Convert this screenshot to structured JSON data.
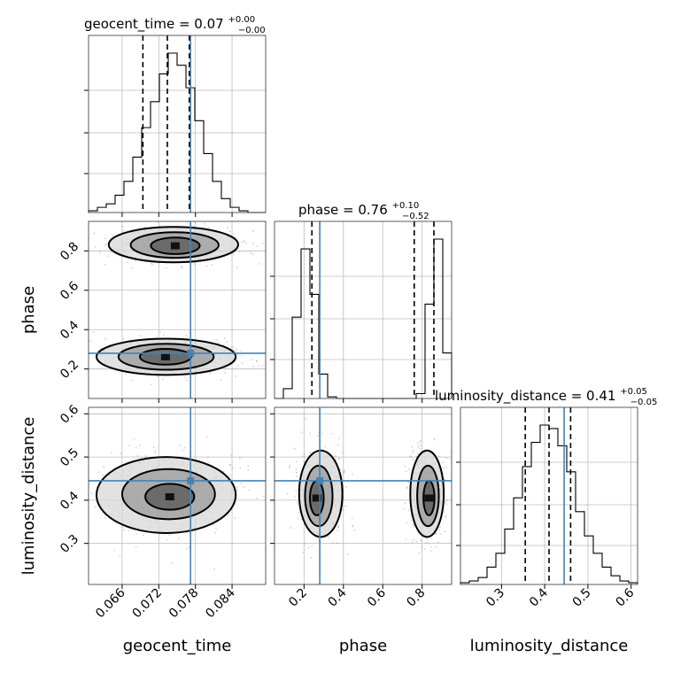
{
  "chart_data": {
    "type": "corner",
    "parameters": [
      "geocent_time",
      "phase",
      "luminosity_distance"
    ],
    "truths": {
      "geocent_time": 0.0772,
      "phase": 0.28,
      "luminosity_distance": 0.445
    },
    "titles": [
      {
        "name": "geocent_time",
        "value": "0.07",
        "plus": "+0.00",
        "minus": "−0.00"
      },
      {
        "name": "phase",
        "value": "0.76",
        "plus": "+0.10",
        "minus": "−0.52"
      },
      {
        "name": "luminosity_distance",
        "value": "0.41",
        "plus": "+0.05",
        "minus": "−0.05"
      }
    ],
    "axes": {
      "geocent_time": {
        "range": [
          0.0605,
          0.0895
        ],
        "ticks": [
          "0.066",
          "0.072",
          "0.078",
          "0.084"
        ]
      },
      "phase": {
        "range": [
          0.05,
          0.95
        ],
        "ticks": [
          "0.2",
          "0.4",
          "0.6",
          "0.8"
        ]
      },
      "luminosity_distance": {
        "range": [
          0.205,
          0.615
        ],
        "ticks": [
          "0.3",
          "0.4",
          "0.5",
          "0.6"
        ]
      }
    },
    "quantiles": {
      "geocent_time": [
        0.0694,
        0.0734,
        0.077
      ],
      "phase": [
        0.24,
        0.76,
        0.86
      ],
      "luminosity_distance": [
        0.355,
        0.41,
        0.46
      ]
    },
    "histograms": {
      "geocent_time": {
        "bins": 20,
        "range": [
          0.0605,
          0.0895
        ],
        "counts": [
          1,
          3,
          5,
          10,
          18,
          32,
          49,
          64,
          80,
          92,
          85,
          72,
          53,
          34,
          18,
          8,
          3,
          1,
          0,
          0
        ]
      },
      "phase": {
        "bins": 20,
        "range": [
          0.05,
          0.95
        ],
        "counts": [
          0,
          6,
          50,
          92,
          64,
          15,
          1,
          0,
          0,
          0,
          0,
          0,
          0,
          0,
          0,
          0,
          3,
          58,
          98,
          28
        ]
      },
      "luminosity_distance": {
        "bins": 20,
        "range": [
          0.205,
          0.615
        ],
        "counts": [
          1,
          2,
          4,
          10,
          18,
          32,
          50,
          68,
          82,
          92,
          90,
          80,
          65,
          42,
          28,
          18,
          10,
          5,
          2,
          1
        ]
      }
    },
    "contours": {
      "phase_vs_geocent_time": [
        {
          "level": 0.86,
          "blobs": [
            {
              "cx": 0.0744,
              "cy": 0.832,
              "rx": 0.0106,
              "ry": 0.09
            },
            {
              "cx": 0.0732,
              "cy": 0.262,
              "rx": 0.0114,
              "ry": 0.092
            }
          ]
        },
        {
          "level": 0.39,
          "blobs": [
            {
              "cx": 0.0746,
              "cy": 0.83,
              "rx": 0.0072,
              "ry": 0.065
            },
            {
              "cx": 0.0732,
              "cy": 0.262,
              "rx": 0.0078,
              "ry": 0.066
            }
          ]
        },
        {
          "level": 0.12,
          "blobs": [
            {
              "cx": 0.0747,
              "cy": 0.826,
              "rx": 0.004,
              "ry": 0.042
            },
            {
              "cx": 0.0731,
              "cy": 0.262,
              "rx": 0.0042,
              "ry": 0.04
            }
          ]
        }
      ],
      "luminosity_distance_vs_geocent_time": [
        {
          "level": 0.86,
          "blobs": [
            {
              "cx": 0.0732,
              "cy": 0.412,
              "rx": 0.0114,
              "ry": 0.088
            }
          ]
        },
        {
          "level": 0.39,
          "blobs": [
            {
              "cx": 0.0736,
              "cy": 0.414,
              "rx": 0.0076,
              "ry": 0.058
            }
          ]
        },
        {
          "level": 0.12,
          "blobs": [
            {
              "cx": 0.0738,
              "cy": 0.408,
              "rx": 0.004,
              "ry": 0.03
            }
          ]
        }
      ],
      "luminosity_distance_vs_phase": [
        {
          "level": 0.86,
          "blobs": [
            {
              "cx": 0.285,
              "cy": 0.415,
              "rx": 0.11,
              "ry": 0.1
            },
            {
              "cx": 0.825,
              "cy": 0.415,
              "rx": 0.085,
              "ry": 0.1
            }
          ]
        },
        {
          "level": 0.39,
          "blobs": [
            {
              "cx": 0.275,
              "cy": 0.41,
              "rx": 0.07,
              "ry": 0.07
            },
            {
              "cx": 0.83,
              "cy": 0.41,
              "rx": 0.055,
              "ry": 0.07
            }
          ]
        },
        {
          "level": 0.12,
          "blobs": [
            {
              "cx": 0.265,
              "cy": 0.405,
              "rx": 0.035,
              "ry": 0.04
            },
            {
              "cx": 0.835,
              "cy": 0.405,
              "rx": 0.028,
              "ry": 0.04
            }
          ]
        }
      ]
    }
  }
}
